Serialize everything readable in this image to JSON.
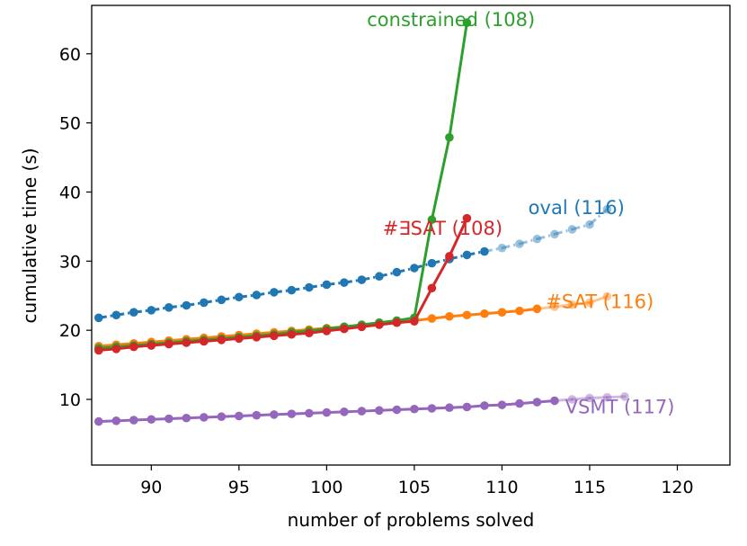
{
  "chart_data": {
    "type": "line",
    "title": "",
    "xlabel": "number of problems solved",
    "ylabel": "cumulative time (s)",
    "xlim": [
      86.6,
      123
    ],
    "ylim": [
      0.5,
      67
    ],
    "xticks": [
      90,
      95,
      100,
      105,
      110,
      115,
      120
    ],
    "yticks": [
      10,
      20,
      30,
      40,
      50,
      60
    ],
    "series": [
      {
        "name": "oval (116)",
        "color": "#1f77b4",
        "style": "dashdot",
        "label_at": [
          111.5,
          36.8
        ],
        "x": [
          87,
          88,
          89,
          90,
          91,
          92,
          93,
          94,
          95,
          96,
          97,
          98,
          99,
          100,
          101,
          102,
          103,
          104,
          105,
          106,
          107,
          108,
          109,
          110,
          111,
          112,
          113,
          114,
          115,
          116
        ],
        "values": [
          21.8,
          22.2,
          22.6,
          22.9,
          23.3,
          23.6,
          24.0,
          24.4,
          24.8,
          25.1,
          25.5,
          25.8,
          26.2,
          26.6,
          26.9,
          27.3,
          27.8,
          28.4,
          29.0,
          29.7,
          30.3,
          30.9,
          31.4,
          31.9,
          32.5,
          33.2,
          33.9,
          34.6,
          35.3,
          37.5
        ],
        "faded_from": 109
      },
      {
        "name": "#SAT (116)",
        "color": "#ff7f0e",
        "style": "solid",
        "label_at": [
          112.5,
          23.2
        ],
        "x": [
          87,
          88,
          89,
          90,
          91,
          92,
          93,
          94,
          95,
          96,
          97,
          98,
          99,
          100,
          101,
          102,
          103,
          104,
          105,
          106,
          107,
          108,
          109,
          110,
          111,
          112,
          113,
          114,
          115,
          116
        ],
        "values": [
          17.7,
          17.9,
          18.1,
          18.3,
          18.5,
          18.7,
          18.9,
          19.1,
          19.3,
          19.5,
          19.7,
          19.9,
          20.1,
          20.3,
          20.5,
          20.7,
          20.9,
          21.1,
          21.4,
          21.7,
          22.0,
          22.2,
          22.4,
          22.6,
          22.8,
          23.1,
          23.4,
          23.7,
          24.0,
          24.9
        ],
        "faded_from": 112
      },
      {
        "name": "constrained (108)",
        "color": "#2ca02c",
        "style": "solid",
        "label_at": [
          102.3,
          64.0
        ],
        "x": [
          87,
          88,
          89,
          90,
          91,
          92,
          93,
          94,
          95,
          96,
          97,
          98,
          99,
          100,
          101,
          102,
          103,
          104,
          105,
          106,
          107,
          108
        ],
        "values": [
          17.4,
          17.6,
          17.8,
          18.0,
          18.2,
          18.4,
          18.6,
          18.8,
          19.0,
          19.2,
          19.4,
          19.7,
          19.9,
          20.2,
          20.5,
          20.8,
          21.1,
          21.4,
          21.8,
          36.0,
          47.9,
          64.5
        ],
        "faded_from": 108
      },
      {
        "name": "#∃SAT (108)",
        "color": "#d62728",
        "style": "solid",
        "label_at": [
          103.2,
          33.8
        ],
        "x": [
          87,
          88,
          89,
          90,
          91,
          92,
          93,
          94,
          95,
          96,
          97,
          98,
          99,
          100,
          101,
          102,
          103,
          104,
          105,
          106,
          107,
          108
        ],
        "values": [
          17.1,
          17.3,
          17.6,
          17.8,
          18.0,
          18.2,
          18.4,
          18.6,
          18.8,
          19.0,
          19.2,
          19.4,
          19.6,
          19.9,
          20.2,
          20.5,
          20.8,
          21.1,
          21.3,
          26.1,
          30.7,
          36.2
        ],
        "faded_from": 108
      },
      {
        "name": "VSMT (117)",
        "color": "#9467bd",
        "style": "solid",
        "label_at": [
          113.6,
          8.0
        ],
        "x": [
          87,
          88,
          89,
          90,
          91,
          92,
          93,
          94,
          95,
          96,
          97,
          98,
          99,
          100,
          101,
          102,
          103,
          104,
          105,
          106,
          107,
          108,
          109,
          110,
          111,
          112,
          113,
          114,
          115,
          116,
          117
        ],
        "values": [
          6.8,
          6.9,
          7.0,
          7.1,
          7.2,
          7.3,
          7.4,
          7.5,
          7.6,
          7.7,
          7.8,
          7.9,
          8.0,
          8.1,
          8.2,
          8.3,
          8.4,
          8.5,
          8.6,
          8.7,
          8.8,
          8.9,
          9.1,
          9.2,
          9.4,
          9.6,
          9.8,
          10.0,
          10.2,
          10.3,
          10.4
        ],
        "faded_from": 113
      }
    ]
  }
}
